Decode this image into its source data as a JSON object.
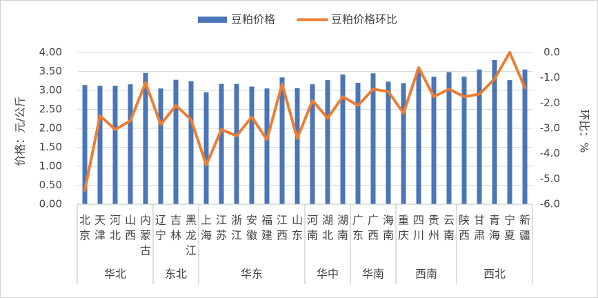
{
  "chart_data": {
    "type": "bar+line",
    "legend": {
      "placement": "top",
      "entries": [
        "豆粕价格",
        "豆粕价格环比"
      ]
    },
    "colors": {
      "bar": "#4a76b7",
      "line": "#ed7d31",
      "grid": "#d9d9d9",
      "text": "#444444"
    },
    "y_left": {
      "label": "价格：元/公斤",
      "ylim": [
        0,
        4
      ],
      "ticks": [
        "0.00",
        "0.50",
        "1.00",
        "1.50",
        "2.00",
        "2.50",
        "3.00",
        "3.50",
        "4.00"
      ]
    },
    "y_right": {
      "label": "环比：%",
      "ylim": [
        -6,
        0
      ],
      "ticks": [
        "-6.0",
        "-5.0",
        "-4.0",
        "-3.0",
        "-2.0",
        "-1.0",
        "0.0"
      ]
    },
    "categories": [
      "北京",
      "天津",
      "河北",
      "山西",
      "内蒙古",
      "辽宁",
      "吉林",
      "黑龙江",
      "上海",
      "江苏",
      "浙江",
      "安徽",
      "福建",
      "江西",
      "山东",
      "河南",
      "湖北",
      "湖南",
      "广东",
      "广西",
      "海南",
      "重庆",
      "四川",
      "贵州",
      "云南",
      "陕西",
      "甘肃",
      "青海",
      "宁夏",
      "新疆"
    ],
    "regions": [
      {
        "name": "华北",
        "count": 5
      },
      {
        "name": "东北",
        "count": 3
      },
      {
        "name": "华东",
        "count": 7
      },
      {
        "name": "华中",
        "count": 3
      },
      {
        "name": "华南",
        "count": 3
      },
      {
        "name": "西南",
        "count": 4
      },
      {
        "name": "西北",
        "count": 5
      }
    ],
    "series": [
      {
        "name": "豆粕价格",
        "type": "bar",
        "axis": "left",
        "values": [
          3.14,
          3.12,
          3.12,
          3.16,
          3.46,
          3.05,
          3.28,
          3.24,
          2.95,
          3.17,
          3.17,
          3.1,
          3.05,
          3.34,
          3.06,
          3.16,
          3.27,
          3.42,
          3.2,
          3.45,
          3.23,
          3.19,
          3.56,
          3.36,
          3.48,
          3.36,
          3.55,
          3.8,
          3.27,
          3.55
        ]
      },
      {
        "name": "豆粕价格环比",
        "type": "line",
        "axis": "right",
        "values": [
          -5.45,
          -2.5,
          -3.05,
          -2.7,
          -1.2,
          -2.85,
          -2.1,
          -2.65,
          -4.45,
          -3.05,
          -3.3,
          -2.55,
          -3.45,
          -1.25,
          -3.4,
          -1.9,
          -2.6,
          -1.75,
          -2.1,
          -1.45,
          -1.55,
          -2.4,
          -0.6,
          -1.75,
          -1.45,
          -1.75,
          -1.65,
          -1.05,
          0.0,
          -1.4
        ]
      }
    ]
  }
}
